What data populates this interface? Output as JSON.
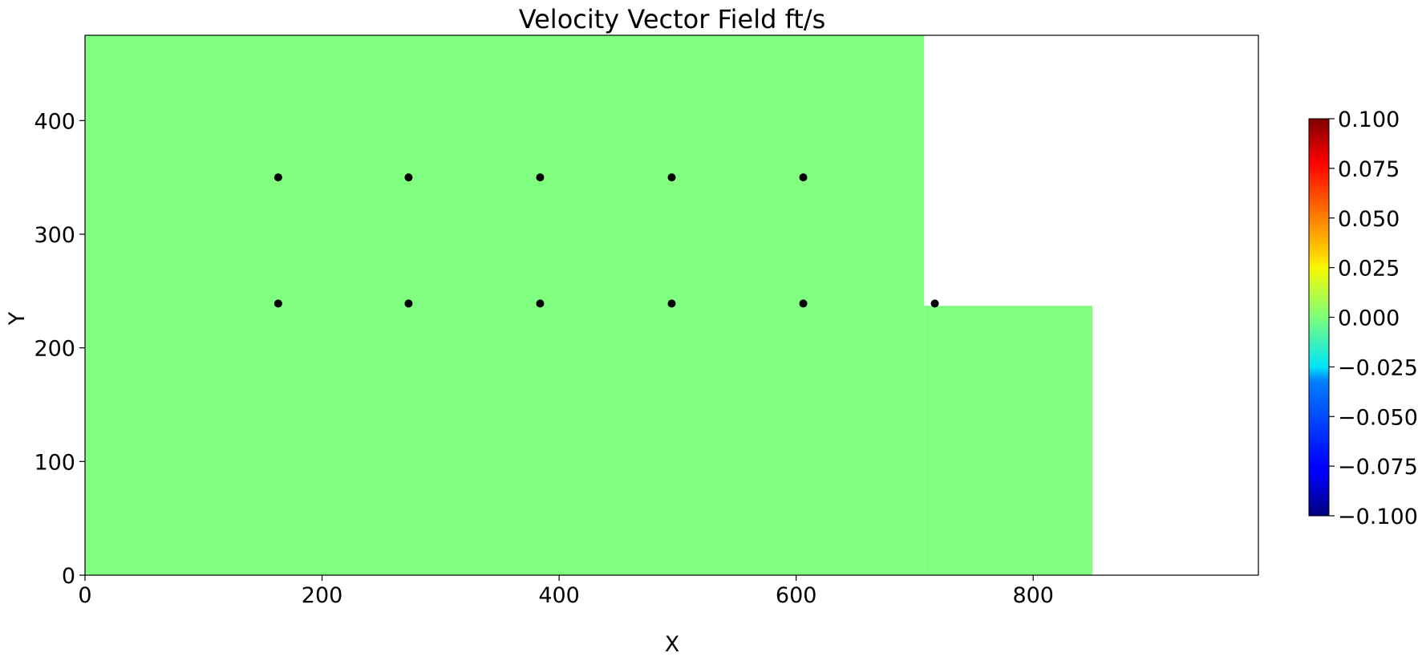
{
  "chart_data": {
    "type": "scatter",
    "title": "Velocity Vector Field ft/s",
    "xlabel": "X",
    "ylabel": "Y",
    "xlim": [
      0,
      990
    ],
    "ylim": [
      0,
      475
    ],
    "xticks": [
      0,
      200,
      400,
      600,
      800
    ],
    "yticks": [
      0,
      100,
      200,
      300,
      400
    ],
    "x_tick_labels": [
      "0",
      "200",
      "400",
      "600",
      "800"
    ],
    "y_tick_labels": [
      "0",
      "100",
      "200",
      "300",
      "400"
    ],
    "field_color": "#80ff80",
    "field_value": 0.0,
    "domain_regions": [
      {
        "x": [
          0,
          708
        ],
        "y": [
          0,
          475
        ]
      },
      {
        "x": [
          708,
          850
        ],
        "y": [
          0,
          237
        ]
      }
    ],
    "points": [
      {
        "x": 163,
        "y": 350
      },
      {
        "x": 273,
        "y": 350
      },
      {
        "x": 384,
        "y": 350
      },
      {
        "x": 495,
        "y": 350
      },
      {
        "x": 606,
        "y": 350
      },
      {
        "x": 163,
        "y": 239
      },
      {
        "x": 273,
        "y": 239
      },
      {
        "x": 384,
        "y": 239
      },
      {
        "x": 495,
        "y": 239
      },
      {
        "x": 606,
        "y": 239
      },
      {
        "x": 717,
        "y": 239
      }
    ],
    "point_color": "#000000",
    "colorbar": {
      "colormap": "jet",
      "min": -0.1,
      "max": 0.1,
      "tick_values": [
        0.1,
        0.075,
        0.05,
        0.025,
        0.0,
        -0.025,
        -0.05,
        -0.075,
        -0.1
      ],
      "tick_labels": [
        "0.100",
        "0.075",
        "0.050",
        "0.025",
        "0.000",
        "−0.025",
        "−0.050",
        "−0.075",
        "−0.100"
      ]
    },
    "grid": false
  }
}
